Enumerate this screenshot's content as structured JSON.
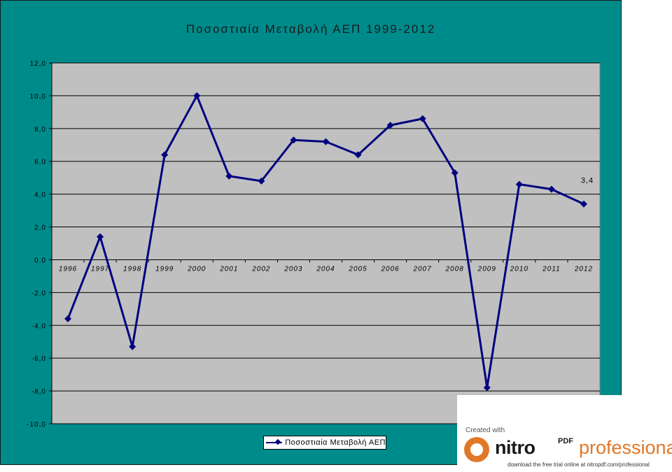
{
  "chart_data": {
    "type": "line",
    "title": "Ποσοστιαία Μεταβολή ΑΕΠ 1999-2012",
    "categories": [
      "1996",
      "1997",
      "1998",
      "1999",
      "2000",
      "2001",
      "2002",
      "2003",
      "2004",
      "2005",
      "2006",
      "2007",
      "2008",
      "2009",
      "2010",
      "2011",
      "2012"
    ],
    "series": [
      {
        "name": "Ποσοστιαία Μεταβολή ΑΕΠ",
        "values": [
          -3.6,
          1.4,
          -5.3,
          6.4,
          10.0,
          5.1,
          4.8,
          7.3,
          7.2,
          6.4,
          8.2,
          8.6,
          5.3,
          -7.8,
          4.6,
          4.3,
          3.4
        ],
        "color": "#000080"
      }
    ],
    "ylim": [
      -10,
      12
    ],
    "yticks": [
      "12,0",
      "10,0",
      "8,0",
      "6,0",
      "4,0",
      "2,0",
      "0,0",
      "-2,0",
      "-4,0",
      "-6,0",
      "-8,0",
      "-10,0"
    ],
    "data_label": {
      "category": "2012",
      "text": "3,4"
    },
    "grid": true,
    "legend_position": "bottom",
    "colors": {
      "frame": "#008b8b",
      "plot_area": "#c0c0c0",
      "line": "#000080"
    }
  },
  "watermark": {
    "created": "Created with",
    "brand": "nitro",
    "pdf": "PDF",
    "product": "professional",
    "footer": "download the free trial online at nitropdf.com/professional"
  }
}
